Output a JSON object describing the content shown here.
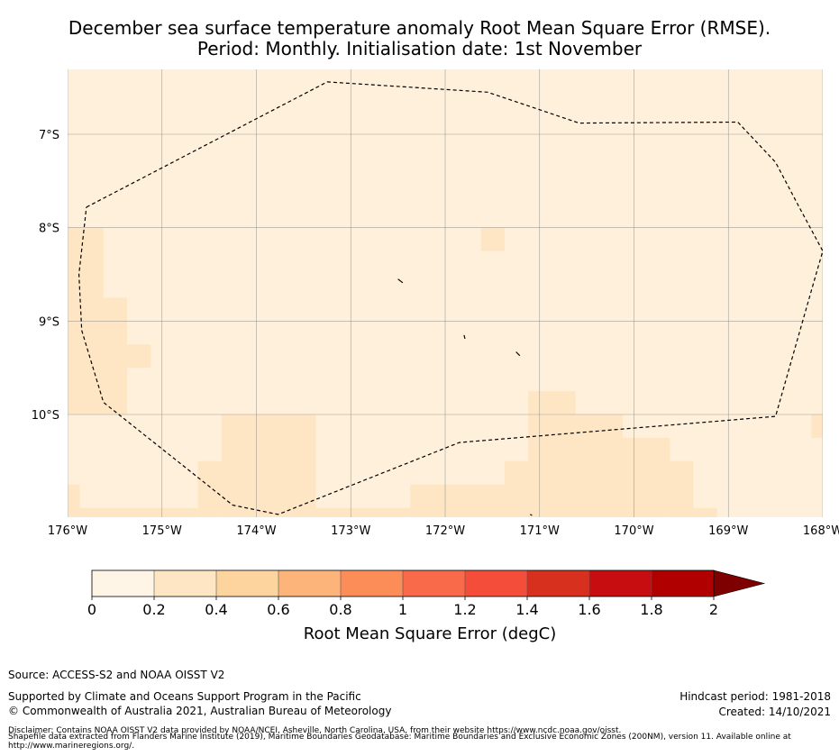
{
  "title": {
    "line1": "December sea surface temperature anomaly Root Mean Square Error (RMSE).",
    "line2": "Period: Monthly. Initialisation date: 1st November"
  },
  "map": {
    "lon_range": [
      -176,
      -168
    ],
    "lat_range": [
      -11.1,
      -6.3
    ],
    "lat_ticks": [
      {
        "value": -7,
        "label": "7°S"
      },
      {
        "value": -8,
        "label": "8°S"
      },
      {
        "value": -9,
        "label": "9°S"
      },
      {
        "value": -10,
        "label": "10°S"
      }
    ],
    "lon_ticks": [
      {
        "value": -176,
        "label": "176°W"
      },
      {
        "value": -175,
        "label": "175°W"
      },
      {
        "value": -174,
        "label": "174°W"
      },
      {
        "value": -173,
        "label": "173°W"
      },
      {
        "value": -172,
        "label": "172°W"
      },
      {
        "value": -171,
        "label": "171°W"
      },
      {
        "value": -170,
        "label": "170°W"
      },
      {
        "value": -169,
        "label": "169°W"
      },
      {
        "value": -168,
        "label": "168°W"
      }
    ],
    "background_color": "#fef0db",
    "cell_color": "#fee6c5",
    "higher_error_cells": [
      {
        "lon": [
          -176.0,
          -175.62
        ],
        "lat": [
          -10.0,
          -8.0
        ]
      },
      {
        "lon": [
          -175.62,
          -175.37
        ],
        "lat": [
          -10.0,
          -8.75
        ]
      },
      {
        "lon": [
          -175.37,
          -175.12
        ],
        "lat": [
          -9.5,
          -9.25
        ]
      },
      {
        "lon": [
          -176.0,
          -175.87
        ],
        "lat": [
          -11.1,
          -10.75
        ]
      },
      {
        "lon": [
          -176.0,
          -174.62
        ],
        "lat": [
          -11.1,
          -11.0
        ]
      },
      {
        "lon": [
          -174.37,
          -173.37
        ],
        "lat": [
          -11.1,
          -10.0
        ]
      },
      {
        "lon": [
          -174.62,
          -174.37
        ],
        "lat": [
          -11.1,
          -10.5
        ]
      },
      {
        "lon": [
          -173.37,
          -172.37
        ],
        "lat": [
          -11.1,
          -11.0
        ]
      },
      {
        "lon": [
          -172.37,
          -171.12
        ],
        "lat": [
          -11.1,
          -10.75
        ]
      },
      {
        "lon": [
          -171.37,
          -171.12
        ],
        "lat": [
          -10.75,
          -10.5
        ]
      },
      {
        "lon": [
          -171.12,
          -169.62
        ],
        "lat": [
          -11.1,
          -10.25
        ]
      },
      {
        "lon": [
          -170.62,
          -170.12
        ],
        "lat": [
          -10.25,
          -10.0
        ]
      },
      {
        "lon": [
          -171.12,
          -170.62
        ],
        "lat": [
          -10.25,
          -9.75
        ]
      },
      {
        "lon": [
          -169.62,
          -169.37
        ],
        "lat": [
          -11.1,
          -10.5
        ]
      },
      {
        "lon": [
          -169.37,
          -169.12
        ],
        "lat": [
          -11.1,
          -11.0
        ]
      },
      {
        "lon": [
          -171.62,
          -171.37
        ],
        "lat": [
          -8.25,
          -8.0
        ]
      },
      {
        "lon": [
          -168.12,
          -167.9
        ],
        "lat": [
          -10.25,
          -10.0
        ]
      }
    ],
    "eez_boundary": [
      [
        -175.8,
        -7.78
      ],
      [
        -173.25,
        -6.44
      ],
      [
        -171.55,
        -6.55
      ],
      [
        -170.58,
        -6.88
      ],
      [
        -168.9,
        -6.87
      ],
      [
        -168.5,
        -7.3
      ],
      [
        -168.24,
        -7.8
      ],
      [
        -168.0,
        -8.25
      ],
      [
        -168.1,
        -8.6
      ],
      [
        -168.5,
        -10.02
      ],
      [
        -171.85,
        -10.3
      ],
      [
        -173.77,
        -11.07
      ],
      [
        -174.25,
        -10.97
      ],
      [
        -175.62,
        -9.87
      ],
      [
        -175.85,
        -9.1
      ],
      [
        -175.88,
        -8.5
      ],
      [
        -175.8,
        -7.78
      ]
    ],
    "islands": [
      [
        [
          -172.5,
          -8.55
        ],
        [
          -172.45,
          -8.59
        ]
      ],
      [
        [
          -171.8,
          -9.15
        ],
        [
          -171.79,
          -9.19
        ]
      ],
      [
        [
          -171.25,
          -9.33
        ],
        [
          -171.21,
          -9.37
        ]
      ],
      [
        [
          -171.1,
          -11.07
        ],
        [
          -171.08,
          -11.08
        ]
      ]
    ]
  },
  "colorbar": {
    "boundaries": [
      0,
      0.2,
      0.4,
      0.6,
      0.8,
      1,
      1.2,
      1.4,
      1.6,
      1.8,
      2
    ],
    "tick_labels": [
      "0",
      "0.2",
      "0.4",
      "0.6",
      "0.8",
      "1",
      "1.2",
      "1.4",
      "1.6",
      "1.8",
      "2"
    ],
    "colors": [
      "#fff5e6",
      "#fee6c5",
      "#fdd49e",
      "#fdb47a",
      "#fc8d59",
      "#f96a4a",
      "#f44d3a",
      "#d7301f",
      "#c80d10",
      "#b00000"
    ],
    "extend_color": "#7f0000",
    "label": "Root Mean Square Error (degC)"
  },
  "footer": {
    "source": "Source: ACCESS-S2 and NOAA OISST V2",
    "support": "Supported by Climate and Oceans Support Program in the Pacific",
    "copyright": "© Commonwealth of Australia 2021, Australian Bureau of Meteorology",
    "hindcast": "Hindcast period: 1981-2018",
    "created": "Created: 14/10/2021",
    "disclaimer_1": "Disclaimer: Contains NOAA OISST V2 data provided by NOAA/NCEI, Asheville, North Carolina, USA, from their website https://www.ncdc.noaa.gov/oisst.",
    "disclaimer_2": "Shapefile data extracted from Flanders Marine Institute (2019), Maritime Boundaries Geodatabase: Maritime Boundaries and Exclusive Economic Zones (200NM), version 11. Available online at",
    "disclaimer_3": "http://www.marineregions.org/."
  }
}
